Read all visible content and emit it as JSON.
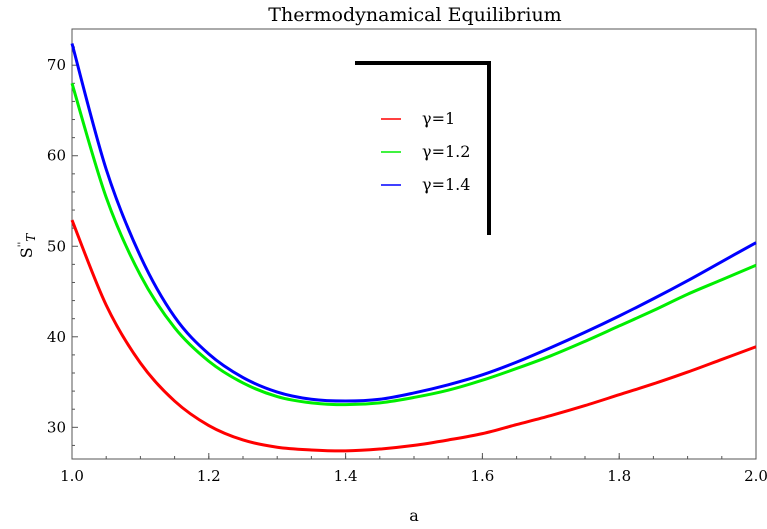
{
  "chart_data": {
    "type": "line",
    "title": "Thermodynamical Equilibrium",
    "xlabel": "a",
    "ylabel_base": "S",
    "ylabel_sup": "''",
    "ylabel_sub": "T",
    "xlim": [
      1.0,
      2.0
    ],
    "ylim": [
      26.5,
      74.0
    ],
    "x_ticks": [
      1.0,
      1.2,
      1.4,
      1.6,
      1.8,
      2.0
    ],
    "x_tick_labels": [
      "1.0",
      "1.2",
      "1.4",
      "1.6",
      "1.8",
      "2.0"
    ],
    "y_ticks": [
      30,
      40,
      50,
      60,
      70
    ],
    "y_tick_labels": [
      "30",
      "40",
      "50",
      "60",
      "70"
    ],
    "grid": false,
    "legend_position": "top-center",
    "series": [
      {
        "name": "γ=1",
        "color": "#ff0000",
        "x": [
          1.0,
          1.05,
          1.1,
          1.15,
          1.2,
          1.25,
          1.3,
          1.35,
          1.4,
          1.45,
          1.5,
          1.55,
          1.6,
          1.65,
          1.7,
          1.75,
          1.8,
          1.85,
          1.9,
          1.95,
          2.0
        ],
        "y": [
          52.9,
          43.5,
          37.1,
          32.9,
          30.2,
          28.6,
          27.8,
          27.5,
          27.4,
          27.6,
          28.0,
          28.6,
          29.3,
          30.3,
          31.3,
          32.4,
          33.6,
          34.8,
          36.1,
          37.5,
          38.9
        ]
      },
      {
        "name": "γ=1.2",
        "color": "#00ee00",
        "x": [
          1.0,
          1.05,
          1.1,
          1.15,
          1.2,
          1.25,
          1.3,
          1.35,
          1.4,
          1.45,
          1.5,
          1.55,
          1.6,
          1.65,
          1.7,
          1.75,
          1.8,
          1.85,
          1.9,
          1.95,
          2.0
        ],
        "y": [
          68.0,
          55.4,
          46.8,
          41.0,
          37.3,
          34.9,
          33.4,
          32.7,
          32.5,
          32.7,
          33.3,
          34.1,
          35.2,
          36.5,
          37.9,
          39.5,
          41.2,
          42.9,
          44.7,
          46.3,
          47.9
        ]
      },
      {
        "name": "γ=1.4",
        "color": "#0000ff",
        "x": [
          1.0,
          1.05,
          1.1,
          1.15,
          1.2,
          1.25,
          1.3,
          1.35,
          1.4,
          1.45,
          1.5,
          1.55,
          1.6,
          1.65,
          1.7,
          1.75,
          1.8,
          1.85,
          1.9,
          1.95,
          2.0
        ],
        "y": [
          72.4,
          58.5,
          48.9,
          42.2,
          38.1,
          35.5,
          33.9,
          33.1,
          32.9,
          33.1,
          33.8,
          34.7,
          35.8,
          37.2,
          38.8,
          40.5,
          42.3,
          44.2,
          46.2,
          48.3,
          50.4
        ]
      }
    ]
  }
}
